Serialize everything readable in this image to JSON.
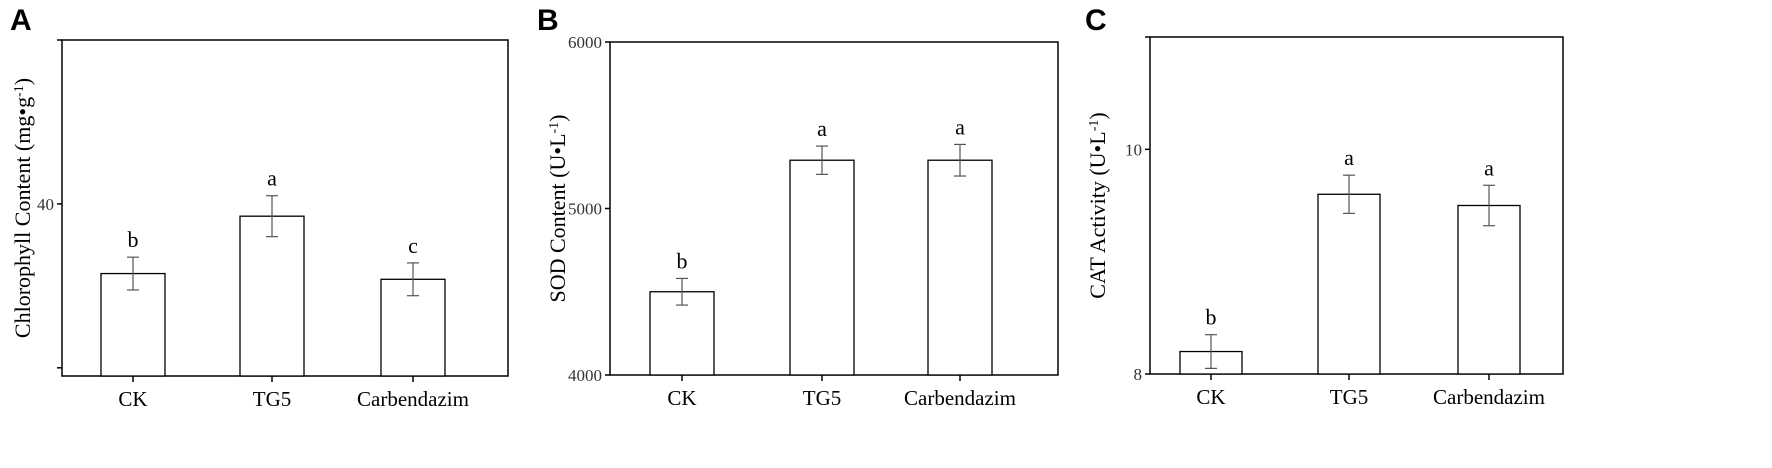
{
  "chart_data": [
    {
      "panel": "A",
      "type": "bar",
      "categories": [
        "CK",
        "TG5",
        "Carbendazim"
      ],
      "values": [
        31.5,
        38.5,
        30.8
      ],
      "errors": [
        2.0,
        2.5,
        2.0
      ],
      "significance": [
        "b",
        "a",
        "c"
      ],
      "ylabel": "Chlorophyll Content (mg•g",
      "ylabel_sup": "-1",
      "ylabel_end": ")",
      "ylim": [
        19,
        60
      ],
      "yticks": [
        40
      ],
      "yminor": [
        20,
        60
      ]
    },
    {
      "panel": "B",
      "type": "bar",
      "categories": [
        "CK",
        "TG5",
        "Carbendazim"
      ],
      "values": [
        4500,
        5290,
        5290
      ],
      "errors": [
        80,
        85,
        95
      ],
      "significance": [
        "b",
        "a",
        "a"
      ],
      "ylabel": "SOD Content (U•L",
      "ylabel_sup": "-1",
      "ylabel_end": ")",
      "ylim": [
        4000,
        6000
      ],
      "yticks": [
        4000,
        5000,
        6000
      ],
      "yminor": []
    },
    {
      "panel": "C",
      "type": "bar",
      "categories": [
        "CK",
        "TG5",
        "Carbendazim"
      ],
      "values": [
        8.2,
        9.6,
        9.5
      ],
      "errors": [
        0.15,
        0.17,
        0.18
      ],
      "significance": [
        "b",
        "a",
        "a"
      ],
      "ylabel": "CAT Activity (U•L",
      "ylabel_sup": "-1",
      "ylabel_end": ")",
      "ylim": [
        8,
        11
      ],
      "yticks": [
        8,
        10
      ],
      "yminor": [
        11
      ]
    }
  ]
}
